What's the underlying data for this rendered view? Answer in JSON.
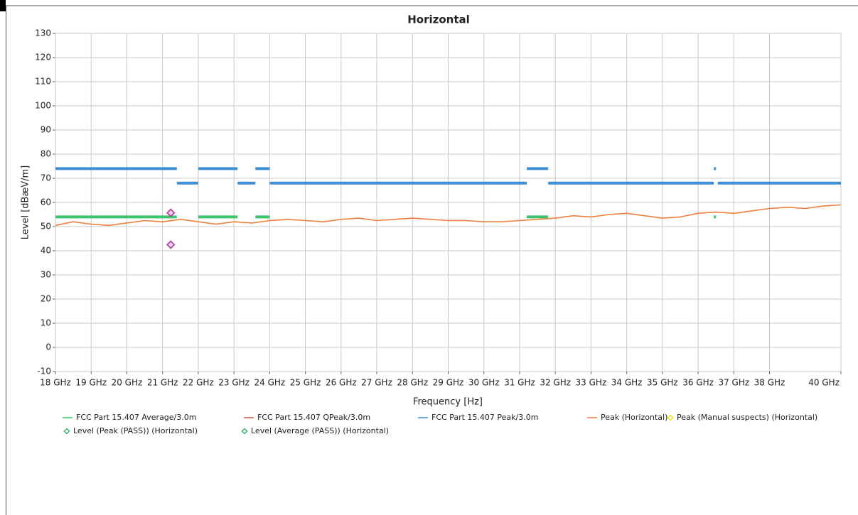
{
  "chart_data": {
    "type": "line",
    "title": "Horizontal",
    "x_label": "Frequency [Hz]",
    "y_label": "Level [dBæV/m]",
    "xlim": [
      18000000000,
      40000000000
    ],
    "ylim": [
      -10,
      130
    ],
    "xticks": [
      {
        "value": 18000000000,
        "label": "18 GHz"
      },
      {
        "value": 19000000000,
        "label": "19 GHz"
      },
      {
        "value": 20000000000,
        "label": "20 GHz"
      },
      {
        "value": 21000000000,
        "label": "21 GHz"
      },
      {
        "value": 22000000000,
        "label": "22 GHz"
      },
      {
        "value": 23000000000,
        "label": "23 GHz"
      },
      {
        "value": 24000000000,
        "label": "24 GHz"
      },
      {
        "value": 25000000000,
        "label": "25 GHz"
      },
      {
        "value": 26000000000,
        "label": "26 GHz"
      },
      {
        "value": 27000000000,
        "label": "27 GHz"
      },
      {
        "value": 28000000000,
        "label": "28 GHz"
      },
      {
        "value": 29000000000,
        "label": "29 GHz"
      },
      {
        "value": 30000000000,
        "label": "30 GHz"
      },
      {
        "value": 31000000000,
        "label": "31 GHz"
      },
      {
        "value": 32000000000,
        "label": "32 GHz"
      },
      {
        "value": 33000000000,
        "label": "33 GHz"
      },
      {
        "value": 34000000000,
        "label": "34 GHz"
      },
      {
        "value": 35000000000,
        "label": "35 GHz"
      },
      {
        "value": 36000000000,
        "label": "36 GHz"
      },
      {
        "value": 37000000000,
        "label": "37 GHz"
      },
      {
        "value": 38000000000,
        "label": "38 GHz"
      },
      {
        "value": 40000000000,
        "label": "40 GHz"
      }
    ],
    "yticks": [
      -10,
      0,
      10,
      20,
      30,
      40,
      50,
      60,
      70,
      80,
      90,
      100,
      110,
      120,
      130
    ],
    "grid": true,
    "series": [
      {
        "name": "FCC Part 15.407 Average/3.0m",
        "color": "#3cc46e",
        "x": [
          18000000000,
          21400000000,
          21400000000,
          22000000000,
          23100000000,
          23100000000,
          23600000000,
          24000000000,
          24000000000,
          31200000000,
          31800000000,
          31800000000,
          36440000000,
          36500000000
        ],
        "values": [
          54,
          54,
          null,
          54,
          54,
          null,
          54,
          54,
          null,
          54,
          54,
          null,
          54,
          54
        ]
      },
      {
        "name": "FCC Part 15.407 QPeak/3.0m",
        "color": "#d9534f",
        "x": [],
        "values": []
      },
      {
        "name": "FCC Part 15.407 Peak/3.0m",
        "color": "#3d8fd6",
        "x": [
          18000000000,
          21400000000,
          21400000000,
          21400000000,
          22000000000,
          22000000000,
          22000000000,
          23100000000,
          23100000000,
          23100000000,
          23600000000,
          23600000000,
          23600000000,
          24000000000,
          24000000000,
          24000000000,
          31200000000,
          31200000000,
          31200000000,
          31800000000,
          31800000000,
          31800000000,
          36440000000,
          36440000000,
          36440000000,
          36500000000,
          36500000000,
          36550000000,
          40000000000
        ],
        "values": [
          74,
          74,
          null,
          68,
          68,
          null,
          74,
          74,
          null,
          68,
          68,
          null,
          74,
          74,
          null,
          68,
          68,
          null,
          74,
          74,
          null,
          68,
          68,
          null,
          74,
          74,
          null,
          68,
          68
        ]
      },
      {
        "name": "Peak (Horizontal)",
        "color": "#f07f3c",
        "x": [
          18000000000,
          18500000000,
          19000000000,
          19500000000,
          20000000000,
          20500000000,
          21000000000,
          21500000000,
          22000000000,
          22500000000,
          23000000000,
          23500000000,
          24000000000,
          24500000000,
          25000000000,
          25500000000,
          26000000000,
          26500000000,
          27000000000,
          27500000000,
          28000000000,
          28500000000,
          29000000000,
          29500000000,
          30000000000,
          30500000000,
          31000000000,
          31500000000,
          32000000000,
          32500000000,
          33000000000,
          33500000000,
          34000000000,
          34500000000,
          35000000000,
          35500000000,
          36000000000,
          36500000000,
          37000000000,
          37500000000,
          38000000000,
          38500000000,
          39000000000,
          39500000000,
          40000000000
        ],
        "values": [
          50.5,
          52,
          51,
          50.5,
          51.5,
          52.5,
          52,
          53,
          52,
          51,
          52,
          51.5,
          52.5,
          53,
          52.5,
          52,
          53,
          53.5,
          52.5,
          53,
          53.5,
          53,
          52.5,
          52.5,
          52,
          52,
          52.5,
          53,
          53.5,
          54.5,
          54,
          55,
          55.5,
          54.5,
          53.5,
          54,
          55.5,
          56,
          55.5,
          56.5,
          57.5,
          58,
          57.5,
          58.5,
          59
        ]
      },
      {
        "name": "Peak (Manual suspects) (Horizontal)",
        "color": "#f5e61a",
        "marker": "diamond",
        "x": [],
        "values": []
      },
      {
        "name": "Level (Peak (PASS)) (Horizontal)",
        "color": "#3cb371",
        "marker": "diamond",
        "marker_edge": "#b5479d",
        "x": [
          21230000000
        ],
        "values": [
          55.7
        ]
      },
      {
        "name": "Level (Average (PASS)) (Horizontal)",
        "color": "#3cb371",
        "marker": "diamond",
        "marker_edge": "#b5479d",
        "x": [
          21230000000
        ],
        "values": [
          42.5
        ]
      }
    ]
  }
}
